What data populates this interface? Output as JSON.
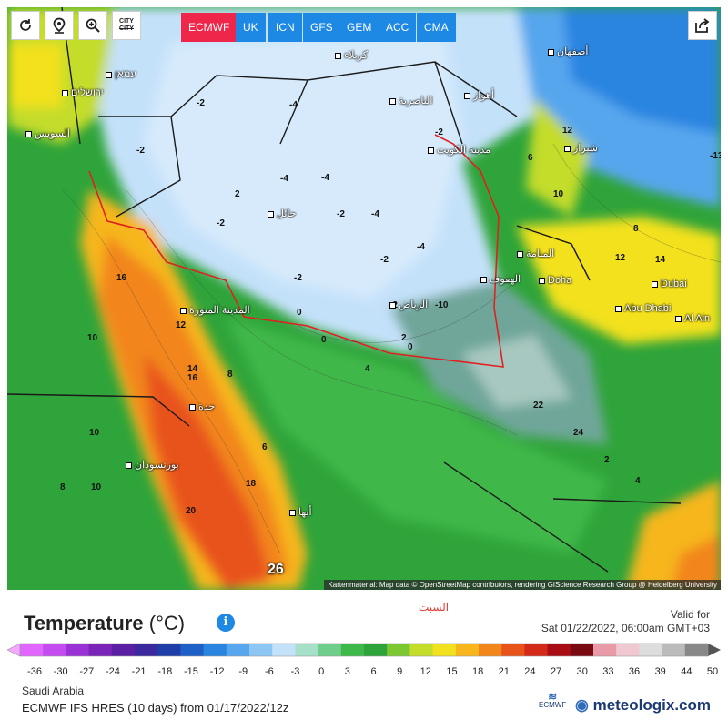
{
  "toolbar": {
    "buttons": [
      {
        "name": "reload",
        "icon": "reload-icon"
      },
      {
        "name": "location",
        "icon": "map-pin-icon"
      },
      {
        "name": "zoom",
        "icon": "zoom-icon"
      }
    ],
    "city_toggle": {
      "line1": "CITY",
      "line2": "CITY"
    },
    "models": [
      "ECMWF",
      "UK",
      "ICN",
      "GFS",
      "GEM",
      "ACC",
      "CMA"
    ],
    "active_model": "ECMWF",
    "share_icon": "share-icon",
    "colors": {
      "active": "#f0254a",
      "tab": "#1e88e5"
    }
  },
  "map": {
    "attribution": "Kartenmaterial: Map data © OpenStreetMap contributors, rendering GIScience Research Group @ Heidelberg University",
    "highlight_value": "26",
    "cities": [
      {
        "label": "المدينة المنورة"
      },
      {
        "label": "جدة"
      },
      {
        "label": "الرياض"
      },
      {
        "label": "مدينة الكويت"
      },
      {
        "label": "المنامة"
      },
      {
        "label": "Doha"
      },
      {
        "label": "Dubai"
      },
      {
        "label": "Abu Dhabi"
      },
      {
        "label": "Al Ain"
      },
      {
        "label": "بورتسودان"
      },
      {
        "label": "حائل"
      },
      {
        "label": "الهفوف"
      },
      {
        "label": "الناصرية"
      },
      {
        "label": "شيراز"
      },
      {
        "label": "أصفهان"
      },
      {
        "label": "עמאן"
      },
      {
        "label": "ירושלים"
      },
      {
        "label": "السويس"
      },
      {
        "label": "أبها"
      },
      {
        "label": "كربلاء"
      },
      {
        "label": "أهواز"
      }
    ],
    "iso_labels": [
      "-2",
      "-4",
      "-2",
      "-4",
      "-2",
      "-4",
      "-2",
      "-4",
      "-2",
      "-4",
      "-2",
      "-2",
      "0",
      "0",
      "2",
      "4",
      "6",
      "8",
      "10",
      "12",
      "14",
      "16",
      "18",
      "20",
      "22",
      "24",
      "2",
      "4",
      "6",
      "8",
      "10",
      "12",
      "14",
      "16",
      "10",
      "8",
      "10",
      "12",
      "-13",
      "-10",
      "-2",
      "2",
      "0"
    ]
  },
  "legend": {
    "day_label": "السبت",
    "title": "Temperature",
    "unit": "(°C)",
    "info_icon": "info-icon",
    "valid_for_label": "Valid for",
    "valid_time": "Sat 01/22/2022, 06:00am GMT+03",
    "ticks": [
      "-36",
      "-30",
      "-27",
      "-24",
      "-21",
      "-18",
      "-15",
      "-12",
      "-9",
      "-6",
      "-3",
      "0",
      "3",
      "6",
      "9",
      "12",
      "15",
      "18",
      "21",
      "24",
      "27",
      "30",
      "33",
      "36",
      "39",
      "44",
      "50"
    ],
    "colors": [
      "#e066ff",
      "#c44bf0",
      "#9a33d6",
      "#7a24b8",
      "#5a1fa3",
      "#3a2a9e",
      "#1f3fa8",
      "#1f5fc8",
      "#2a85e0",
      "#57a6ee",
      "#8cc6f5",
      "#c4e1fa",
      "#a7e0c8",
      "#6fcf8a",
      "#3fb84a",
      "#2fa43a",
      "#7cc832",
      "#c4dc2a",
      "#f2e11f",
      "#f6b61c",
      "#f2861a",
      "#e8531a",
      "#d42a1a",
      "#a80e14",
      "#7a0a12",
      "#e89aa6",
      "#f0c9d0",
      "#dddddd",
      "#bbbbbb",
      "#888888"
    ]
  },
  "footer": {
    "region": "Saudi Arabia",
    "model_run": "ECMWF IFS HRES (10 days) from 01/17/2022/12z",
    "ecmwf_logo": "ECMWF",
    "brand": "meteologix.com",
    "brand_icon": "meteologix-logo-icon"
  }
}
